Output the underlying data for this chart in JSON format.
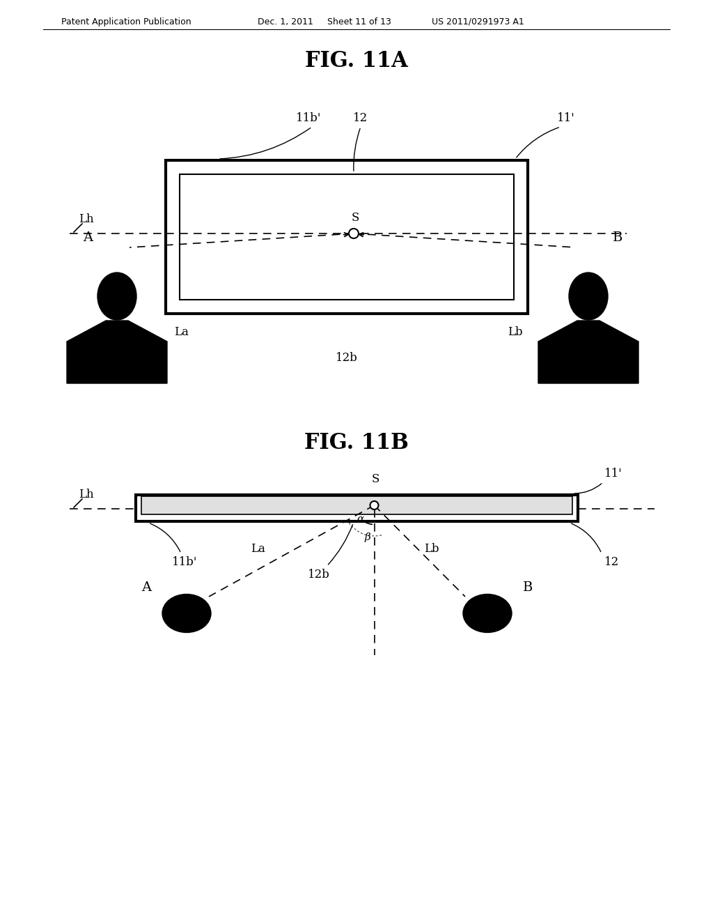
{
  "bg_color": "#ffffff",
  "header_left": "Patent Application Publication",
  "header_mid1": "Dec. 1, 2011",
  "header_mid2": "Sheet 11 of 13",
  "header_right": "US 2011/0291973 A1",
  "fig11a_title": "FIG. 11A",
  "fig11b_title": "FIG. 11B",
  "line_color": "#000000"
}
